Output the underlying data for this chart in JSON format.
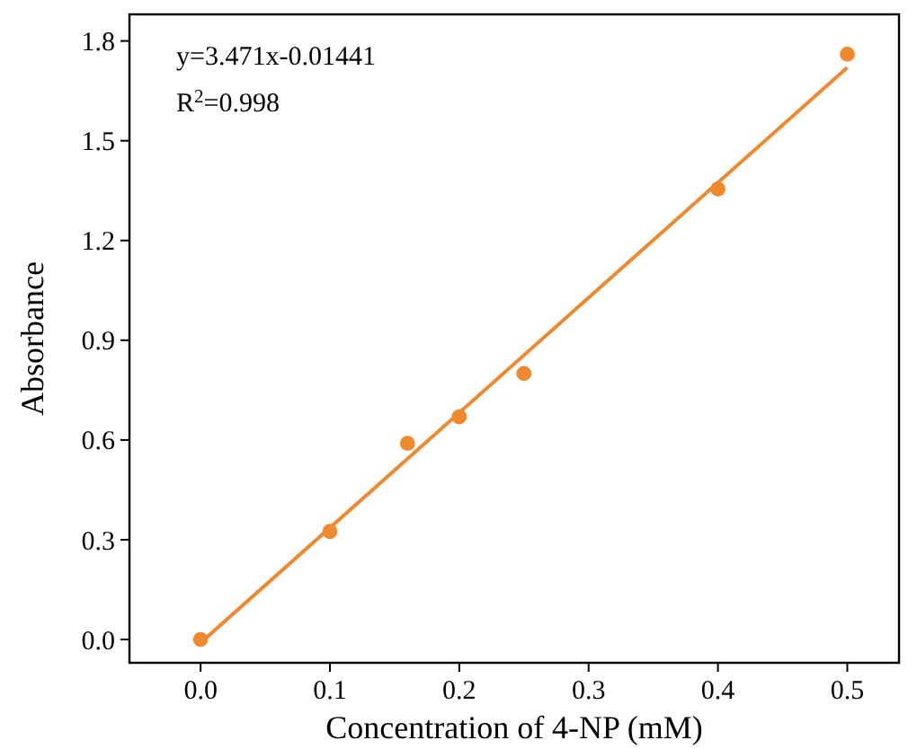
{
  "chart_data": {
    "type": "scatter",
    "xlabel": "Concentration of 4-NP (mM)",
    "ylabel": "Absorbance",
    "xlim": [
      -0.055,
      0.54
    ],
    "ylim": [
      -0.07,
      1.88
    ],
    "xticks": [
      {
        "value": 0,
        "label": "0.0"
      },
      {
        "value": 0.1,
        "label": "0.1"
      },
      {
        "value": 0.2,
        "label": "0.2"
      },
      {
        "value": 0.3,
        "label": "0.3"
      },
      {
        "value": 0.4,
        "label": "0.4"
      },
      {
        "value": 0.5,
        "label": "0.5"
      }
    ],
    "yticks": [
      {
        "value": 0,
        "label": "0.0"
      },
      {
        "value": 0.3,
        "label": "0.3"
      },
      {
        "value": 0.6,
        "label": "0.6"
      },
      {
        "value": 0.9,
        "label": "0.9"
      },
      {
        "value": 1.2,
        "label": "1.2"
      },
      {
        "value": 1.5,
        "label": "1.5"
      },
      {
        "value": 1.8,
        "label": "1.8"
      }
    ],
    "grid": false,
    "annotations": [
      "y=3.471x-0.01441",
      "R$^{2}$=0.998"
    ],
    "series": [
      {
        "marker": "circle",
        "color": "#f0892e",
        "x": [
          0,
          0.1,
          0.16,
          0.2,
          0.25,
          0.4,
          0.5
        ],
        "values": [
          0,
          0.325,
          0.59,
          0.67,
          0.8,
          1.355,
          1.76
        ]
      },
      {
        "type": "line",
        "color": "#f0892e",
        "x": [
          0,
          0.5
        ],
        "values": [
          -0.01,
          1.72
        ]
      }
    ]
  }
}
